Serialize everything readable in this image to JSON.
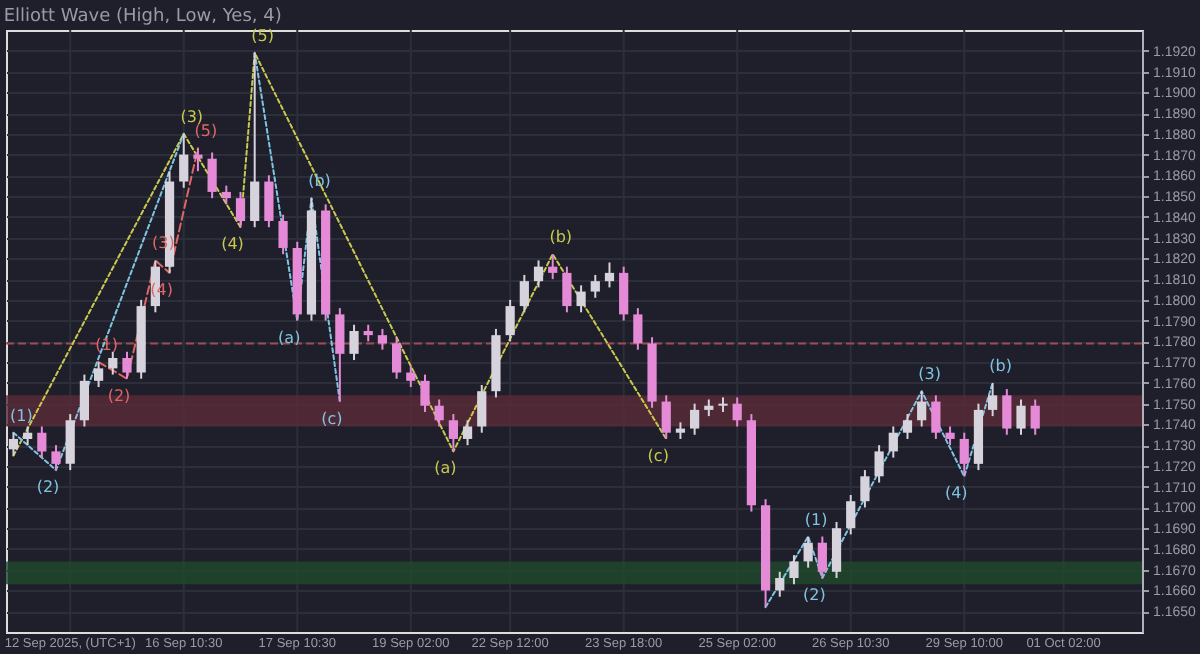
{
  "chart_data": {
    "type": "candlestick",
    "title": "Elliott Wave (High, Low, Yes, 4)",
    "categories": [
      null,
      null,
      null,
      null,
      "12 Sep 2025, (UTC+1)",
      null,
      null,
      null,
      null,
      null,
      null,
      null,
      "16 Sep 10:30",
      null,
      null,
      null,
      null,
      null,
      null,
      null,
      "17 Sep 10:30",
      null,
      null,
      null,
      null,
      null,
      null,
      null,
      "19 Sep 02:00",
      null,
      null,
      null,
      null,
      null,
      null,
      "22 Sep 12:00",
      null,
      null,
      null,
      null,
      null,
      null,
      null,
      "23 Sep 18:00",
      null,
      null,
      null,
      null,
      null,
      null,
      null,
      "25 Sep 02:00",
      null,
      null,
      null,
      null,
      null,
      null,
      null,
      "26 Sep 10:30",
      null,
      null,
      null,
      null,
      null,
      null,
      null,
      "29 Sep 10:00",
      null,
      null,
      null,
      null,
      null,
      null,
      "01 Oct 02:00",
      null,
      null,
      null,
      null,
      null
    ],
    "ohlc": [
      [
        1.1728,
        1.1736,
        1.1725,
        1.1733
      ],
      [
        1.1733,
        1.1739,
        1.173,
        1.1736
      ],
      [
        1.1736,
        1.1739,
        1.1724,
        1.1727
      ],
      [
        1.1727,
        1.173,
        1.1718,
        1.1721
      ],
      [
        1.1721,
        1.1745,
        1.1718,
        1.1742
      ],
      [
        1.1742,
        1.1764,
        1.1739,
        1.1761
      ],
      [
        1.1761,
        1.177,
        1.1758,
        1.1767
      ],
      [
        1.1767,
        1.1775,
        1.1764,
        1.1772
      ],
      [
        1.1772,
        1.1775,
        1.1762,
        1.1765
      ],
      [
        1.1765,
        1.18,
        1.1762,
        1.1797
      ],
      [
        1.1797,
        1.1819,
        1.1794,
        1.1816
      ],
      [
        1.1816,
        1.1862,
        1.1813,
        1.1857
      ],
      [
        1.1857,
        1.188,
        1.1854,
        1.187
      ],
      [
        1.187,
        1.1873,
        1.1862,
        1.1868
      ],
      [
        1.1868,
        1.1871,
        1.1849,
        1.1852
      ],
      [
        1.1852,
        1.1855,
        1.1846,
        1.1849
      ],
      [
        1.1849,
        1.1852,
        1.1835,
        1.1838
      ],
      [
        1.1838,
        1.1919,
        1.1835,
        1.1857
      ],
      [
        1.1857,
        1.186,
        1.1835,
        1.1838
      ],
      [
        1.1838,
        1.1841,
        1.1822,
        1.1825
      ],
      [
        1.1825,
        1.1828,
        1.179,
        1.1793
      ],
      [
        1.1793,
        1.1849,
        1.179,
        1.1843
      ],
      [
        1.1843,
        1.1846,
        1.179,
        1.1793
      ],
      [
        1.1793,
        1.1796,
        1.1751,
        1.1774
      ],
      [
        1.1774,
        1.1788,
        1.1771,
        1.1785
      ],
      [
        1.1785,
        1.1788,
        1.178,
        1.1783
      ],
      [
        1.1783,
        1.1786,
        1.1776,
        1.1779
      ],
      [
        1.1779,
        1.1782,
        1.1762,
        1.1765
      ],
      [
        1.1765,
        1.1768,
        1.1758,
        1.1761
      ],
      [
        1.1761,
        1.1764,
        1.1746,
        1.1749
      ],
      [
        1.1749,
        1.1752,
        1.1739,
        1.1742
      ],
      [
        1.1742,
        1.1745,
        1.1727,
        1.1733
      ],
      [
        1.1733,
        1.1742,
        1.173,
        1.1739
      ],
      [
        1.1739,
        1.1759,
        1.1736,
        1.1756
      ],
      [
        1.1756,
        1.1786,
        1.1753,
        1.1783
      ],
      [
        1.1783,
        1.18,
        1.178,
        1.1797
      ],
      [
        1.1797,
        1.1812,
        1.1794,
        1.1809
      ],
      [
        1.1809,
        1.1819,
        1.1806,
        1.1816
      ],
      [
        1.1816,
        1.1822,
        1.181,
        1.1813
      ],
      [
        1.1813,
        1.1816,
        1.1794,
        1.1797
      ],
      [
        1.1797,
        1.1807,
        1.1794,
        1.1804
      ],
      [
        1.1804,
        1.1812,
        1.1801,
        1.1809
      ],
      [
        1.1809,
        1.1818,
        1.1806,
        1.1813
      ],
      [
        1.1813,
        1.1816,
        1.179,
        1.1793
      ],
      [
        1.1793,
        1.1796,
        1.1776,
        1.1779
      ],
      [
        1.1779,
        1.1782,
        1.1748,
        1.1751
      ],
      [
        1.1751,
        1.1754,
        1.1733,
        1.1736
      ],
      [
        1.1736,
        1.1741,
        1.1733,
        1.1738
      ],
      [
        1.1738,
        1.175,
        1.1735,
        1.1747
      ],
      [
        1.1747,
        1.1752,
        1.1744,
        1.1749
      ],
      [
        1.1749,
        1.1753,
        1.1746,
        1.175
      ],
      [
        1.175,
        1.1753,
        1.1739,
        1.1742
      ],
      [
        1.1742,
        1.1745,
        1.1698,
        1.1701
      ],
      [
        1.1701,
        1.1704,
        1.1652,
        1.166
      ],
      [
        1.166,
        1.1669,
        1.1657,
        1.1666
      ],
      [
        1.1666,
        1.1677,
        1.1663,
        1.1674
      ],
      [
        1.1674,
        1.1686,
        1.1671,
        1.1683
      ],
      [
        1.1683,
        1.1686,
        1.1666,
        1.1669
      ],
      [
        1.1669,
        1.1693,
        1.1666,
        1.169
      ],
      [
        1.169,
        1.1706,
        1.1687,
        1.1703
      ],
      [
        1.1703,
        1.1718,
        1.17,
        1.1715
      ],
      [
        1.1715,
        1.173,
        1.1712,
        1.1727
      ],
      [
        1.1727,
        1.1739,
        1.1724,
        1.1736
      ],
      [
        1.1736,
        1.1745,
        1.1733,
        1.1742
      ],
      [
        1.1742,
        1.1756,
        1.1739,
        1.1751
      ],
      [
        1.1751,
        1.1754,
        1.1733,
        1.1736
      ],
      [
        1.1736,
        1.1739,
        1.173,
        1.1733
      ],
      [
        1.1733,
        1.1736,
        1.1715,
        1.1721
      ],
      [
        1.1721,
        1.175,
        1.1718,
        1.1747
      ],
      [
        1.1747,
        1.176,
        1.1744,
        1.1754
      ],
      [
        1.1754,
        1.1757,
        1.1735,
        1.1738
      ],
      [
        1.1738,
        1.1752,
        1.1735,
        1.1749
      ],
      [
        1.1749,
        1.1752,
        1.1735,
        1.1738
      ],
      null,
      null,
      null,
      null,
      null,
      null,
      null
    ],
    "colors": [
      "#d6d3dc",
      "#d6d3dc",
      "#e58ad6",
      "#e58ad6",
      "#d6d3dc",
      "#d6d3dc",
      "#d6d3dc",
      "#d6d3dc",
      "#e58ad6",
      "#d6d3dc",
      "#d6d3dc",
      "#d6d3dc",
      "#d6d3dc",
      "#e58ad6",
      "#e58ad6",
      "#e58ad6",
      "#e58ad6",
      "#d6d3dc",
      "#e58ad6",
      "#e58ad6",
      "#e58ad6",
      "#d6d3dc",
      "#e58ad6",
      "#e58ad6",
      "#d6d3dc",
      "#e58ad6",
      "#e58ad6",
      "#e58ad6",
      "#e58ad6",
      "#e58ad6",
      "#e58ad6",
      "#e58ad6",
      "#d6d3dc",
      "#d6d3dc",
      "#d6d3dc",
      "#d6d3dc",
      "#d6d3dc",
      "#d6d3dc",
      "#e58ad6",
      "#e58ad6",
      "#d6d3dc",
      "#d6d3dc",
      "#d6d3dc",
      "#e58ad6",
      "#e58ad6",
      "#e58ad6",
      "#e58ad6",
      "#d6d3dc",
      "#d6d3dc",
      "#d6d3dc",
      "#d6d3dc",
      "#e58ad6",
      "#e58ad6",
      "#e58ad6",
      "#d6d3dc",
      "#d6d3dc",
      "#d6d3dc",
      "#e58ad6",
      "#d6d3dc",
      "#d6d3dc",
      "#d6d3dc",
      "#d6d3dc",
      "#d6d3dc",
      "#d6d3dc",
      "#d6d3dc",
      "#e58ad6",
      "#e58ad6",
      "#e58ad6",
      "#d6d3dc",
      "#d6d3dc",
      "#e58ad6",
      "#d6d3dc",
      "#e58ad6",
      null,
      null,
      null,
      null,
      null,
      null,
      null
    ],
    "series": [
      {
        "type": "line",
        "color": "#c9c94e",
        "line_style": "dotted",
        "values": [
          1.1725,
          null,
          null,
          null,
          null,
          null,
          null,
          null,
          null,
          null,
          null,
          null,
          1.188,
          null,
          null,
          null,
          1.1835,
          1.1919,
          null,
          null,
          null,
          null,
          null,
          null,
          null,
          null,
          null,
          null,
          null,
          null,
          null,
          1.1727,
          null,
          null,
          null,
          null,
          null,
          null,
          1.1822,
          null,
          null,
          null,
          null,
          null,
          null,
          null,
          1.1733,
          null,
          null,
          null,
          null,
          null,
          null,
          null,
          null,
          null,
          null,
          null,
          null,
          null,
          null,
          null,
          null,
          null,
          null,
          null,
          null,
          null,
          null,
          null,
          null,
          null,
          null,
          null,
          null,
          null,
          null,
          null,
          null,
          null
        ]
      },
      {
        "type": "line",
        "color": "#7fc4e0",
        "line_style": "dotted",
        "values": [
          1.1736,
          null,
          null,
          1.1718,
          null,
          null,
          null,
          null,
          null,
          null,
          null,
          null,
          1.188,
          null,
          null,
          null,
          null,
          null,
          null,
          null,
          null,
          null,
          null,
          null,
          null,
          null,
          null,
          null,
          null,
          null,
          null,
          null,
          null,
          null,
          null,
          null,
          null,
          null,
          null,
          null,
          null,
          null,
          null,
          null,
          null,
          null,
          null,
          null,
          null,
          null,
          null,
          null,
          null,
          null,
          null,
          null,
          null,
          null,
          null,
          null,
          null,
          null,
          null,
          null,
          null,
          null,
          null,
          null,
          null,
          null,
          null,
          null,
          null,
          null,
          null,
          null,
          null,
          null,
          null,
          null
        ]
      },
      {
        "type": "line",
        "color": "#7fc4e0",
        "line_style": "dotted",
        "values": [
          null,
          null,
          null,
          null,
          null,
          null,
          null,
          null,
          null,
          null,
          null,
          null,
          null,
          null,
          null,
          null,
          null,
          1.1919,
          null,
          null,
          1.179,
          1.1849,
          null,
          1.1751,
          null,
          null,
          null,
          null,
          null,
          null,
          null,
          null,
          null,
          null,
          null,
          null,
          null,
          null,
          null,
          null,
          null,
          null,
          null,
          null,
          null,
          null,
          null,
          null,
          null,
          null,
          null,
          null,
          null,
          null,
          null,
          null,
          null,
          null,
          null,
          null,
          null,
          null,
          null,
          null,
          null,
          null,
          null,
          null,
          null,
          null,
          null,
          null,
          null,
          null,
          null,
          null,
          null,
          null,
          null,
          null
        ]
      },
      {
        "type": "line",
        "color": "#7fc4e0",
        "line_style": "dotted",
        "values": [
          null,
          null,
          null,
          null,
          null,
          null,
          null,
          null,
          null,
          null,
          null,
          null,
          null,
          null,
          null,
          null,
          null,
          null,
          null,
          null,
          null,
          null,
          null,
          null,
          null,
          null,
          null,
          null,
          null,
          null,
          null,
          null,
          null,
          null,
          null,
          null,
          null,
          null,
          null,
          null,
          null,
          null,
          null,
          null,
          null,
          null,
          null,
          null,
          null,
          null,
          null,
          null,
          null,
          1.1652,
          null,
          null,
          1.1686,
          1.1666,
          null,
          null,
          null,
          null,
          null,
          null,
          1.1756,
          null,
          null,
          1.1715,
          null,
          1.176,
          null,
          null,
          null,
          null,
          null,
          null,
          null,
          null,
          null,
          null
        ]
      },
      {
        "type": "line",
        "color": "#e06666",
        "line_style": "dashed",
        "values": [
          null,
          null,
          null,
          null,
          null,
          null,
          1.177,
          null,
          1.1762,
          null,
          1.1819,
          1.1813,
          null,
          1.1873,
          null,
          null,
          null,
          null,
          null,
          null,
          null,
          null,
          null,
          null,
          null,
          null,
          null,
          null,
          null,
          null,
          null,
          null,
          null,
          null,
          null,
          null,
          null,
          null,
          null,
          null,
          null,
          null,
          null,
          null,
          null,
          null,
          null,
          null,
          null,
          null,
          null,
          null,
          null,
          null,
          null,
          null,
          null,
          null,
          null,
          null,
          null,
          null,
          null,
          null,
          null,
          null,
          null,
          null,
          null,
          null,
          null,
          null,
          null,
          null,
          null,
          null,
          null,
          null,
          null,
          null
        ]
      }
    ],
    "annotations": [
      {
        "text": "(3)",
        "y": 1.188
      },
      {
        "text": "(4)",
        "y": 1.1835
      },
      {
        "text": "(5)",
        "y": 1.1919
      },
      {
        "text": "(a)",
        "y": 1.1727
      },
      {
        "text": "(b)",
        "y": 1.1822
      },
      {
        "text": "(c)",
        "y": 1.1733
      },
      {
        "text": "(1)",
        "y": 1.1736
      },
      {
        "text": "(2)",
        "y": 1.1718
      },
      {
        "text": "(a)",
        "y": 1.179
      },
      {
        "text": "(b)",
        "y": 1.1849
      },
      {
        "text": "(c)",
        "y": 1.1751
      },
      {
        "text": "(1)",
        "y": 1.1686
      },
      {
        "text": "(2)",
        "y": 1.1666
      },
      {
        "text": "(3)",
        "y": 1.1756
      },
      {
        "text": "(4)",
        "y": 1.1715
      },
      {
        "text": "(b)",
        "y": 1.176
      },
      {
        "text": "(1)",
        "y": 1.177
      },
      {
        "text": "(2)",
        "y": 1.1762
      },
      {
        "text": "(3)",
        "y": 1.1819
      },
      {
        "text": "(4)",
        "y": 1.1813
      },
      {
        "text": "(5)",
        "y": 1.1873
      }
    ],
    "bands": [
      {
        "axis": "y",
        "from": 1.1739,
        "to": 1.1754,
        "color": "#5a2a38"
      },
      {
        "axis": "y",
        "from": 1.1663,
        "to": 1.1674,
        "color": "#1f4a2c"
      }
    ],
    "ref_lines": [
      {
        "axis": "y",
        "value": 1.1779,
        "color": "#a04a55",
        "line_style": "dashed"
      }
    ],
    "ylim": [
      1.164,
      1.193
    ],
    "yticks": [
      {
        "value": 1.165,
        "label": "1.1650"
      },
      {
        "value": 1.166,
        "label": "1.1660"
      },
      {
        "value": 1.167,
        "label": "1.1670"
      },
      {
        "value": 1.168,
        "label": "1.1680"
      },
      {
        "value": 1.169,
        "label": "1.1690"
      },
      {
        "value": 1.17,
        "label": "1.1700"
      },
      {
        "value": 1.171,
        "label": "1.1710"
      },
      {
        "value": 1.172,
        "label": "1.1720"
      },
      {
        "value": 1.173,
        "label": "1.1730"
      },
      {
        "value": 1.174,
        "label": "1.1740"
      },
      {
        "value": 1.175,
        "label": "1.1750"
      },
      {
        "value": 1.176,
        "label": "1.1760"
      },
      {
        "value": 1.177,
        "label": "1.1770"
      },
      {
        "value": 1.178,
        "label": "1.1780"
      },
      {
        "value": 1.179,
        "label": "1.1790"
      },
      {
        "value": 1.18,
        "label": "1.1800"
      },
      {
        "value": 1.181,
        "label": "1.1810"
      },
      {
        "value": 1.182,
        "label": "1.1820"
      },
      {
        "value": 1.183,
        "label": "1.1830"
      },
      {
        "value": 1.184,
        "label": "1.1840"
      },
      {
        "value": 1.185,
        "label": "1.1850"
      },
      {
        "value": 1.186,
        "label": "1.1860"
      },
      {
        "value": 1.187,
        "label": "1.1870"
      },
      {
        "value": 1.188,
        "label": "1.1880"
      },
      {
        "value": 1.189,
        "label": "1.1890"
      },
      {
        "value": 1.19,
        "label": "1.1900"
      },
      {
        "value": 1.191,
        "label": "1.1910"
      },
      {
        "value": 1.192,
        "label": "1.1920"
      }
    ],
    "grid": true
  }
}
